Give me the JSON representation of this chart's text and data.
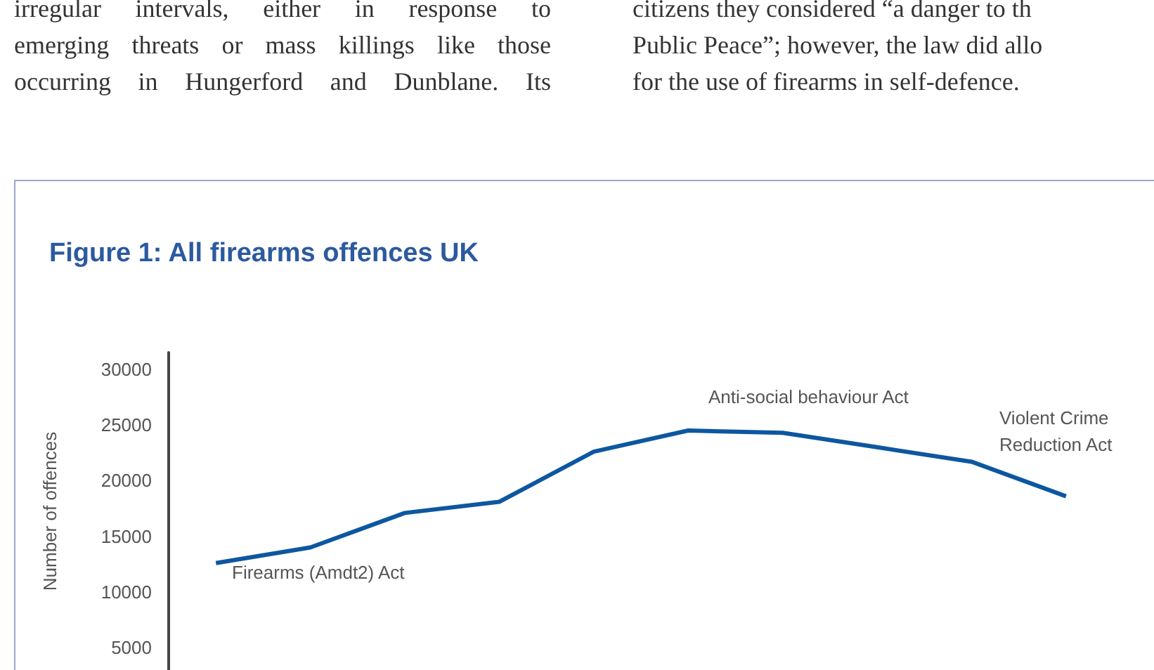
{
  "chart_data": {
    "type": "line",
    "title": "Figure 1: All firearms offences UK",
    "ylabel": "Number of offences",
    "categories": [
      null,
      null,
      null,
      null,
      null,
      null,
      null,
      null,
      null,
      null
    ],
    "series": [
      {
        "color": "#0d57a0",
        "values": [
          12600,
          14000,
          17100,
          18100,
          22600,
          24500,
          24300,
          23000,
          21700,
          18600
        ]
      }
    ],
    "ylim": [
      3000,
      31500
    ],
    "yticks": [
      5000,
      10000,
      15000,
      20000,
      25000,
      30000
    ],
    "tick_labels": "y",
    "grid": false,
    "marker": "none",
    "line_style": "solid",
    "annotations": [
      "Firearms (Amdt2) Act",
      "Anti-social behaviour Act",
      "Violent Crime\nReduction Act",
      "irregular intervals, either in response to",
      "emerging threats or mass killings like those",
      "occurring in Hungerford and Dunblane. Its",
      "citizens they considered “a danger to th",
      "Public Peace”; however, the law did allo",
      "for the use of firearms in self-defence."
    ]
  }
}
